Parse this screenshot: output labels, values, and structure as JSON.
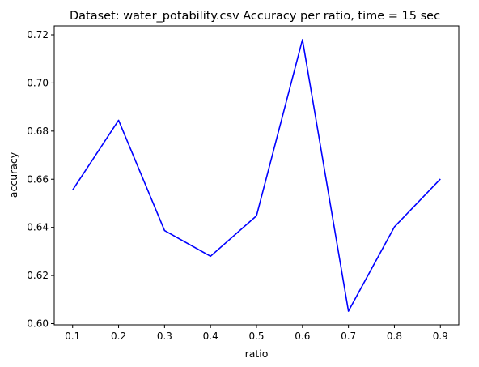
{
  "chart_data": {
    "type": "line",
    "title": "Dataset: water_potability.csv Accuracy per ratio, time = 15 sec",
    "xlabel": "ratio",
    "ylabel": "accuracy",
    "x": [
      0.1,
      0.2,
      0.3,
      0.4,
      0.5,
      0.6,
      0.7,
      0.8,
      0.9
    ],
    "series": [
      {
        "values": [
          0.6555,
          0.6845,
          0.6387,
          0.628,
          0.6448,
          0.718,
          0.6052,
          0.6402,
          0.6601
        ],
        "color": "#0000ff"
      }
    ],
    "xlim": [
      0.06,
      0.94
    ],
    "ylim": [
      0.5995,
      0.7237
    ],
    "xticks": [
      "0.1",
      "0.2",
      "0.3",
      "0.4",
      "0.5",
      "0.6",
      "0.7",
      "0.8",
      "0.9"
    ],
    "yticks": [
      "0.60",
      "0.62",
      "0.64",
      "0.66",
      "0.68",
      "0.70",
      "0.72"
    ],
    "grid": false,
    "legend": "none"
  }
}
